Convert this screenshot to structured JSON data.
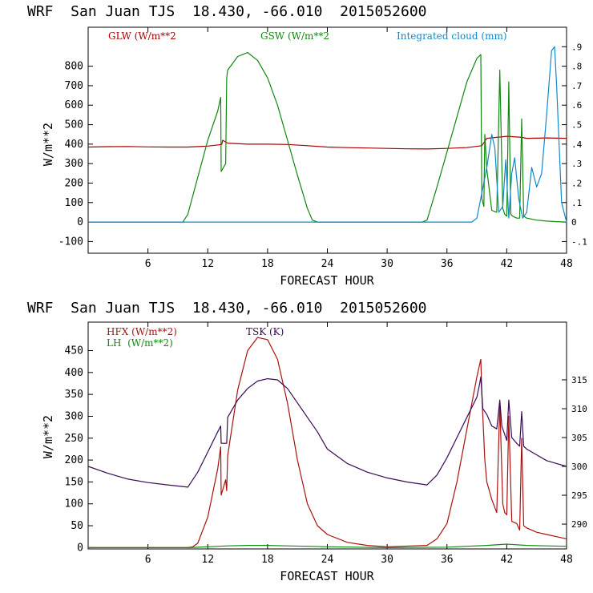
{
  "chart_data": [
    {
      "type": "line",
      "title": "WRF  San Juan TJS  18.430, -66.010  2015052600",
      "xlabel": "FORECAST HOUR",
      "ylabel": "W/m**2",
      "xlim": [
        0,
        48
      ],
      "ylim": [
        -160,
        1000
      ],
      "xticks": [
        6,
        12,
        18,
        24,
        30,
        36,
        42,
        48
      ],
      "xtick_labels": [
        "6",
        "12",
        "18",
        "24",
        "30",
        "36",
        "42",
        "48"
      ],
      "yticks": [
        -100,
        0,
        100,
        200,
        300,
        400,
        500,
        600,
        700,
        800
      ],
      "ytick_labels": [
        "-100",
        "0",
        "100",
        "200",
        "300",
        "400",
        "500",
        "600",
        "700",
        "800"
      ],
      "right_axis": {
        "ylim": [
          -0.16,
          1.0
        ],
        "ticks": [
          -0.1,
          0,
          0.1,
          0.2,
          0.3,
          0.4,
          0.5,
          0.6,
          0.7,
          0.8,
          0.9
        ],
        "tick_labels": [
          "-.1",
          "0",
          ".1",
          ".2",
          ".3",
          ".4",
          ".5",
          ".6",
          ".7",
          ".8",
          ".9"
        ]
      },
      "legend_placement": "top",
      "series": [
        {
          "name": "GLW (W/m**2",
          "color": "#aa0000",
          "axis": "left",
          "x": [
            0,
            2,
            4,
            6,
            8,
            10,
            12,
            13.4,
            13.5,
            14,
            16,
            18,
            20,
            22,
            24,
            26,
            28,
            30,
            32,
            34,
            36,
            38,
            39.5,
            40,
            42,
            43.5,
            44,
            46,
            48
          ],
          "y": [
            385,
            387,
            388,
            386,
            385,
            385,
            390,
            398,
            420,
            405,
            400,
            400,
            398,
            392,
            385,
            382,
            380,
            378,
            376,
            375,
            378,
            382,
            392,
            430,
            440,
            435,
            430,
            432,
            430
          ]
        },
        {
          "name": "GSW (W/m**2",
          "color": "#118811",
          "axis": "left",
          "x": [
            0,
            9.5,
            10,
            11,
            12,
            13,
            13.3,
            13.35,
            13.8,
            13.9,
            14,
            15,
            16,
            17,
            18,
            19,
            20,
            21,
            22,
            22.5,
            23,
            30,
            33.5,
            34,
            35,
            36,
            37,
            38,
            39,
            39.4,
            39.5,
            39.7,
            39.8,
            40,
            40.5,
            41,
            41.3,
            41.6,
            41.8,
            42,
            42.2,
            42.4,
            42.6,
            43,
            43.3,
            43.5,
            43.7,
            44,
            45,
            46,
            47,
            48
          ],
          "y": [
            0,
            0,
            40,
            230,
            420,
            570,
            640,
            260,
            300,
            740,
            780,
            850,
            870,
            830,
            740,
            600,
            420,
            240,
            70,
            10,
            0,
            0,
            0,
            10,
            180,
            360,
            540,
            720,
            840,
            860,
            120,
            80,
            450,
            270,
            60,
            50,
            780,
            70,
            40,
            30,
            720,
            40,
            30,
            20,
            20,
            530,
            30,
            20,
            10,
            5,
            2,
            0
          ]
        },
        {
          "name": "Integrated cloud (mm)",
          "color": "#1188cc",
          "axis": "right",
          "x": [
            0,
            38.5,
            39,
            39.5,
            40,
            40.5,
            40.8,
            41.2,
            41.6,
            41.9,
            42.2,
            42.5,
            42.8,
            43.2,
            43.6,
            44,
            44.5,
            45,
            45.5,
            46,
            46.5,
            46.8,
            47,
            47.5,
            48
          ],
          "y": [
            0,
            0,
            0.02,
            0.15,
            0.28,
            0.45,
            0.38,
            0.05,
            0.08,
            0.32,
            0.02,
            0.25,
            0.33,
            0.12,
            0.02,
            0.05,
            0.28,
            0.18,
            0.25,
            0.55,
            0.88,
            0.9,
            0.7,
            0.1,
            0
          ]
        }
      ]
    },
    {
      "type": "line",
      "title": "WRF  San Juan TJS  18.430, -66.010  2015052600",
      "xlabel": "FORECAST HOUR",
      "ylabel": "W/m**2",
      "xlim": [
        0,
        48
      ],
      "ylim": [
        -3,
        515
      ],
      "xticks": [
        6,
        12,
        18,
        24,
        30,
        36,
        42,
        48
      ],
      "xtick_labels": [
        "6",
        "12",
        "18",
        "24",
        "30",
        "36",
        "42",
        "48"
      ],
      "yticks": [
        0,
        50,
        100,
        150,
        200,
        250,
        300,
        350,
        400,
        450
      ],
      "ytick_labels": [
        "0",
        "50",
        "100",
        "150",
        "200",
        "250",
        "300",
        "350",
        "400",
        "450"
      ],
      "right_axis": {
        "ylim": [
          285.7,
          325
        ],
        "ticks": [
          290,
          295,
          300,
          305,
          310,
          315
        ],
        "tick_labels": [
          "290",
          "295",
          "300",
          "305",
          "310",
          "315"
        ]
      },
      "legend_placement": "top-left",
      "series": [
        {
          "name": "HFX (W/m**2)",
          "color": "#aa1111",
          "axis": "left",
          "x": [
            0,
            10,
            10.5,
            11,
            12,
            13,
            13.3,
            13.35,
            13.8,
            13.9,
            14,
            15,
            16,
            17,
            18,
            19,
            20,
            21,
            22,
            23,
            24,
            26,
            28,
            30,
            34,
            35,
            36,
            37,
            38,
            39,
            39.4,
            39.5,
            39.8,
            40,
            40.5,
            41,
            41.3,
            41.6,
            41.8,
            42,
            42.2,
            42.5,
            43,
            43.3,
            43.5,
            43.7,
            44,
            45,
            46,
            47,
            48
          ],
          "y": [
            0,
            0,
            2,
            10,
            70,
            180,
            230,
            120,
            155,
            130,
            210,
            360,
            450,
            480,
            475,
            430,
            330,
            200,
            100,
            50,
            30,
            12,
            5,
            2,
            5,
            20,
            55,
            150,
            270,
            390,
            430,
            350,
            200,
            150,
            110,
            80,
            330,
            100,
            80,
            75,
            300,
            60,
            55,
            40,
            250,
            50,
            45,
            35,
            30,
            25,
            20
          ]
        },
        {
          "name": "LH  (W/m**2)",
          "color": "#118811",
          "axis": "left",
          "x": [
            0,
            10,
            12,
            14,
            16,
            18,
            20,
            22,
            24,
            30,
            36,
            38,
            40,
            42,
            44,
            46,
            48
          ],
          "y": [
            0,
            0,
            2,
            4,
            5,
            5,
            4,
            3,
            2,
            0,
            1,
            3,
            5,
            8,
            5,
            4,
            3
          ]
        },
        {
          "name": "TSK (K)",
          "color": "#3a0a55",
          "axis": "right",
          "x": [
            0,
            2,
            4,
            6,
            8,
            10,
            11,
            12,
            13,
            13.3,
            13.35,
            13.8,
            13.9,
            14,
            15,
            16,
            17,
            18,
            19,
            20,
            21,
            22,
            23,
            24,
            26,
            28,
            30,
            32,
            34,
            35,
            36,
            37,
            38,
            39,
            39.3,
            39.4,
            39.6,
            40,
            40.5,
            41,
            41.3,
            41.5,
            41.8,
            42,
            42.2,
            42.5,
            43,
            43.3,
            43.5,
            43.7,
            44,
            45,
            46,
            47,
            48
          ],
          "y": [
            300,
            298.8,
            297.8,
            297.2,
            296.8,
            296.4,
            299,
            302.5,
            306,
            307,
            304,
            304,
            304,
            308.5,
            311.5,
            313.5,
            314.8,
            315.2,
            315,
            313.5,
            311,
            308.5,
            306,
            303,
            300.5,
            299,
            298,
            297.3,
            296.8,
            298.5,
            301.5,
            305,
            308.5,
            312,
            314.5,
            315.5,
            310,
            309,
            307,
            306.5,
            311.5,
            307,
            305.5,
            304.5,
            311.5,
            305,
            304,
            303.5,
            309.5,
            303.5,
            303,
            302,
            301,
            300.5,
            300
          ]
        }
      ]
    }
  ]
}
